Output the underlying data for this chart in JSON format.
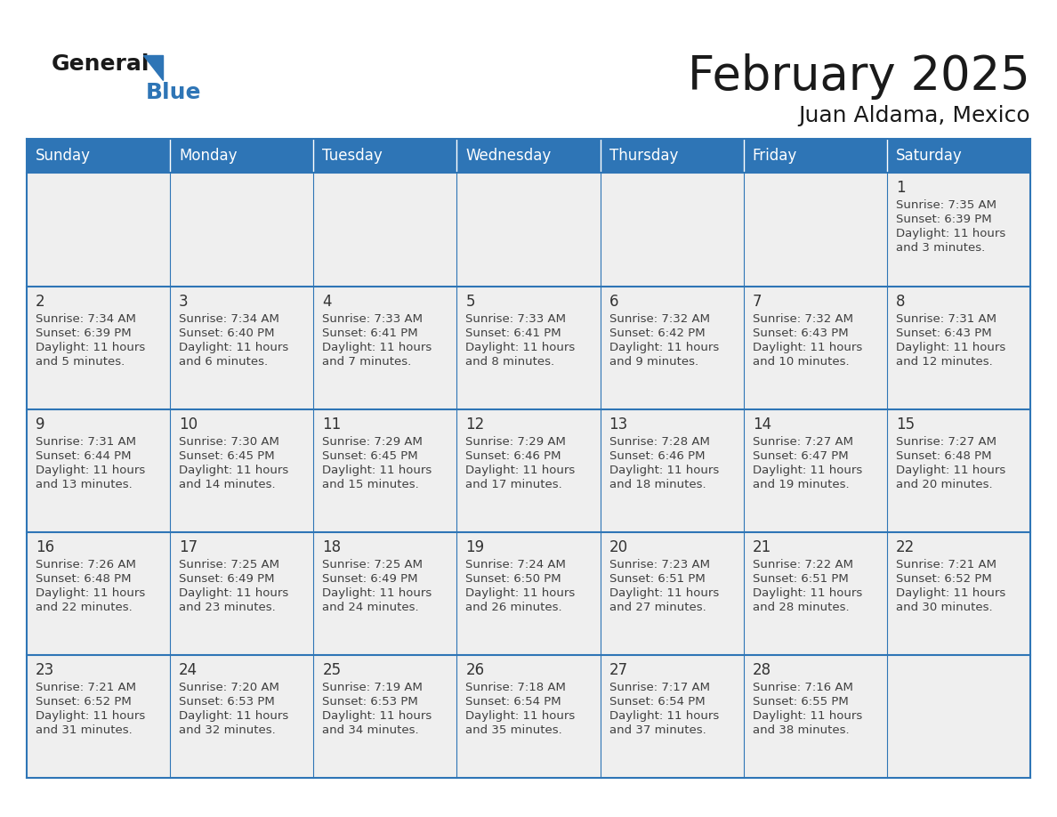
{
  "title": "February 2025",
  "subtitle": "Juan Aldama, Mexico",
  "header_bg_color": "#2E75B6",
  "header_text_color": "#FFFFFF",
  "cell_border_color": "#2E75B6",
  "day_number_color": "#333333",
  "text_color": "#404040",
  "background_color": "#FFFFFF",
  "cell_bg_color": "#EFEFEF",
  "days_of_week": [
    "Sunday",
    "Monday",
    "Tuesday",
    "Wednesday",
    "Thursday",
    "Friday",
    "Saturday"
  ],
  "weeks": [
    [
      {
        "day": null
      },
      {
        "day": null
      },
      {
        "day": null
      },
      {
        "day": null
      },
      {
        "day": null
      },
      {
        "day": null
      },
      {
        "day": 1,
        "sunrise": "7:35 AM",
        "sunset": "6:39 PM",
        "daylight": "11 hours",
        "daylight2": "and 3 minutes."
      }
    ],
    [
      {
        "day": 2,
        "sunrise": "7:34 AM",
        "sunset": "6:39 PM",
        "daylight": "11 hours",
        "daylight2": "and 5 minutes."
      },
      {
        "day": 3,
        "sunrise": "7:34 AM",
        "sunset": "6:40 PM",
        "daylight": "11 hours",
        "daylight2": "and 6 minutes."
      },
      {
        "day": 4,
        "sunrise": "7:33 AM",
        "sunset": "6:41 PM",
        "daylight": "11 hours",
        "daylight2": "and 7 minutes."
      },
      {
        "day": 5,
        "sunrise": "7:33 AM",
        "sunset": "6:41 PM",
        "daylight": "11 hours",
        "daylight2": "and 8 minutes."
      },
      {
        "day": 6,
        "sunrise": "7:32 AM",
        "sunset": "6:42 PM",
        "daylight": "11 hours",
        "daylight2": "and 9 minutes."
      },
      {
        "day": 7,
        "sunrise": "7:32 AM",
        "sunset": "6:43 PM",
        "daylight": "11 hours",
        "daylight2": "and 10 minutes."
      },
      {
        "day": 8,
        "sunrise": "7:31 AM",
        "sunset": "6:43 PM",
        "daylight": "11 hours",
        "daylight2": "and 12 minutes."
      }
    ],
    [
      {
        "day": 9,
        "sunrise": "7:31 AM",
        "sunset": "6:44 PM",
        "daylight": "11 hours",
        "daylight2": "and 13 minutes."
      },
      {
        "day": 10,
        "sunrise": "7:30 AM",
        "sunset": "6:45 PM",
        "daylight": "11 hours",
        "daylight2": "and 14 minutes."
      },
      {
        "day": 11,
        "sunrise": "7:29 AM",
        "sunset": "6:45 PM",
        "daylight": "11 hours",
        "daylight2": "and 15 minutes."
      },
      {
        "day": 12,
        "sunrise": "7:29 AM",
        "sunset": "6:46 PM",
        "daylight": "11 hours",
        "daylight2": "and 17 minutes."
      },
      {
        "day": 13,
        "sunrise": "7:28 AM",
        "sunset": "6:46 PM",
        "daylight": "11 hours",
        "daylight2": "and 18 minutes."
      },
      {
        "day": 14,
        "sunrise": "7:27 AM",
        "sunset": "6:47 PM",
        "daylight": "11 hours",
        "daylight2": "and 19 minutes."
      },
      {
        "day": 15,
        "sunrise": "7:27 AM",
        "sunset": "6:48 PM",
        "daylight": "11 hours",
        "daylight2": "and 20 minutes."
      }
    ],
    [
      {
        "day": 16,
        "sunrise": "7:26 AM",
        "sunset": "6:48 PM",
        "daylight": "11 hours",
        "daylight2": "and 22 minutes."
      },
      {
        "day": 17,
        "sunrise": "7:25 AM",
        "sunset": "6:49 PM",
        "daylight": "11 hours",
        "daylight2": "and 23 minutes."
      },
      {
        "day": 18,
        "sunrise": "7:25 AM",
        "sunset": "6:49 PM",
        "daylight": "11 hours",
        "daylight2": "and 24 minutes."
      },
      {
        "day": 19,
        "sunrise": "7:24 AM",
        "sunset": "6:50 PM",
        "daylight": "11 hours",
        "daylight2": "and 26 minutes."
      },
      {
        "day": 20,
        "sunrise": "7:23 AM",
        "sunset": "6:51 PM",
        "daylight": "11 hours",
        "daylight2": "and 27 minutes."
      },
      {
        "day": 21,
        "sunrise": "7:22 AM",
        "sunset": "6:51 PM",
        "daylight": "11 hours",
        "daylight2": "and 28 minutes."
      },
      {
        "day": 22,
        "sunrise": "7:21 AM",
        "sunset": "6:52 PM",
        "daylight": "11 hours",
        "daylight2": "and 30 minutes."
      }
    ],
    [
      {
        "day": 23,
        "sunrise": "7:21 AM",
        "sunset": "6:52 PM",
        "daylight": "11 hours",
        "daylight2": "and 31 minutes."
      },
      {
        "day": 24,
        "sunrise": "7:20 AM",
        "sunset": "6:53 PM",
        "daylight": "11 hours",
        "daylight2": "and 32 minutes."
      },
      {
        "day": 25,
        "sunrise": "7:19 AM",
        "sunset": "6:53 PM",
        "daylight": "11 hours",
        "daylight2": "and 34 minutes."
      },
      {
        "day": 26,
        "sunrise": "7:18 AM",
        "sunset": "6:54 PM",
        "daylight": "11 hours",
        "daylight2": "and 35 minutes."
      },
      {
        "day": 27,
        "sunrise": "7:17 AM",
        "sunset": "6:54 PM",
        "daylight": "11 hours",
        "daylight2": "and 37 minutes."
      },
      {
        "day": 28,
        "sunrise": "7:16 AM",
        "sunset": "6:55 PM",
        "daylight": "11 hours",
        "daylight2": "and 38 minutes."
      },
      {
        "day": null
      }
    ]
  ],
  "logo_general_color": "#1a1a1a",
  "logo_blue_color": "#2E75B6",
  "logo_triangle_color": "#2E75B6",
  "title_color": "#1a1a1a",
  "subtitle_color": "#1a1a1a"
}
